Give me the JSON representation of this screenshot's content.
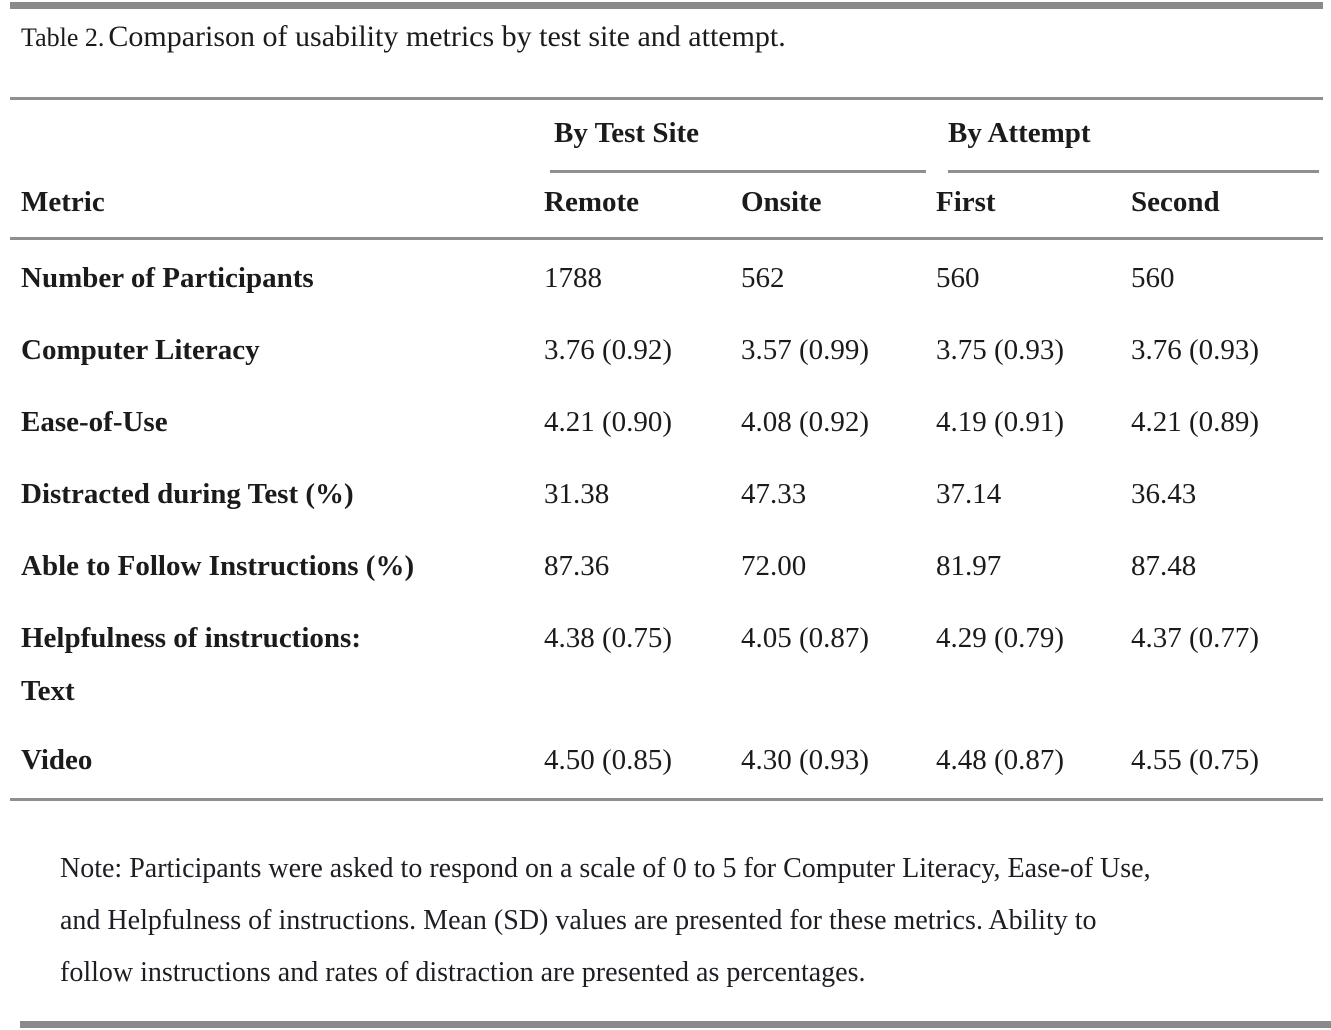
{
  "page": {
    "background": "#ffffff",
    "rule_color": "#8a8a8a",
    "text_color": "#1b1b1b"
  },
  "caption": {
    "label": "Table 2.",
    "text": "Comparison of usability metrics by test site and attempt."
  },
  "table": {
    "spanners": [
      {
        "label": "By Test Site"
      },
      {
        "label": "By Attempt"
      }
    ],
    "header": {
      "metric": "Metric",
      "columns": [
        "Remote",
        "Onsite",
        "First",
        "Second"
      ]
    },
    "rows": [
      {
        "label": "Number of Participants",
        "values": [
          "1788",
          "562",
          "560",
          "560"
        ]
      },
      {
        "label": "Computer Literacy",
        "values": [
          "3.76 (0.92)",
          "3.57 (0.99)",
          "3.75 (0.93)",
          "3.76 (0.93)"
        ]
      },
      {
        "label": "Ease-of-Use",
        "values": [
          "4.21 (0.90)",
          "4.08 (0.92)",
          "4.19 (0.91)",
          "4.21 (0.89)"
        ]
      },
      {
        "label": "Distracted during Test (%)",
        "values": [
          "31.38",
          "47.33",
          "37.14",
          "36.43"
        ]
      },
      {
        "label": "Able to Follow Instructions (%)",
        "values": [
          "87.36",
          "72.00",
          "81.97",
          "87.48"
        ]
      },
      {
        "label": "Helpfulness of instructions:",
        "label_line2": "Text",
        "values": [
          "4.38 (0.75)",
          "4.05 (0.87)",
          "4.29 (0.79)",
          "4.37 (0.77)"
        ]
      },
      {
        "label": "Video",
        "values": [
          "4.50 (0.85)",
          "4.30 (0.93)",
          "4.48 (0.87)",
          "4.55 (0.75)"
        ]
      }
    ]
  },
  "note": {
    "lines": [
      "Note: Participants were asked to respond on a scale of 0 to 5 for Computer Literacy, Ease-of Use,",
      "and Helpfulness of instructions. Mean (SD) values are presented for these metrics. Ability to",
      "follow instructions and rates of distraction are presented as percentages."
    ]
  }
}
